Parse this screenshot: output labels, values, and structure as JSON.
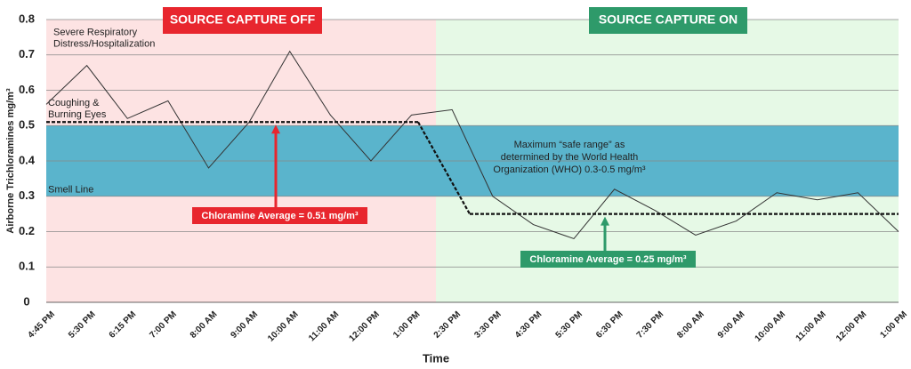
{
  "chart_data": {
    "type": "line",
    "y_label": "Airborne Trichloramines mg/m³",
    "x_label": "Time",
    "regions": [
      {
        "label": "SOURCE CAPTURE OFF",
        "color": "#fde3e3",
        "header_color": "#e8262e"
      },
      {
        "label": "SOURCE CAPTURE ON",
        "color": "#e6f9e6",
        "header_color": "#2e9a6a"
      }
    ],
    "band": {
      "range": [
        0.3,
        0.5
      ],
      "color": "#5ab4cc",
      "lines": [
        "Maximum “safe range” as",
        "determined by the World Health",
        "Organization (WHO) 0.3-0.5 mg/m³"
      ]
    },
    "reference_labels": [
      {
        "lines": [
          "Severe Respiratory",
          "Distress/Hospitalization"
        ],
        "value": 0.7
      },
      {
        "lines": [
          "Coughing &",
          "Burning Eyes"
        ],
        "value": 0.5
      },
      {
        "lines": [
          "Smell Line"
        ],
        "value": 0.3
      }
    ],
    "averages": [
      {
        "label": "Chloramine Average = 0.51 mg/m³",
        "value": 0.51,
        "color": "#e8262e"
      },
      {
        "label": "Chloramine Average = 0.25 mg/m³",
        "value": 0.25,
        "color": "#2e9a6a"
      }
    ],
    "categories": [
      "4:45 PM",
      "5:30 PM",
      "6:15 PM",
      "7:00 PM",
      "8:00 AM",
      "9:00 AM",
      "10:00 AM",
      "11:00 AM",
      "12:00 PM",
      "1:00 PM",
      "2:30 PM",
      "3:30 PM",
      "4:30 PM",
      "5:30 PM",
      "6:30 PM",
      "7:30 PM",
      "8:00 AM",
      "9:00 AM",
      "10:00 AM",
      "11:00 AM",
      "12:00 PM",
      "1:00 PM"
    ],
    "values": [
      0.56,
      0.67,
      0.52,
      0.57,
      0.38,
      0.51,
      0.71,
      0.53,
      0.4,
      0.53,
      0.545,
      0.3,
      0.22,
      0.18,
      0.32,
      0.26,
      0.19,
      0.23,
      0.31,
      0.29,
      0.31,
      0.2
    ],
    "color": "#333333",
    "ylim": [
      0,
      0.8
    ],
    "yticks": [
      0,
      0.1,
      0.2,
      0.3,
      0.4,
      0.5,
      0.6,
      0.7,
      0.8
    ],
    "grid": true
  }
}
